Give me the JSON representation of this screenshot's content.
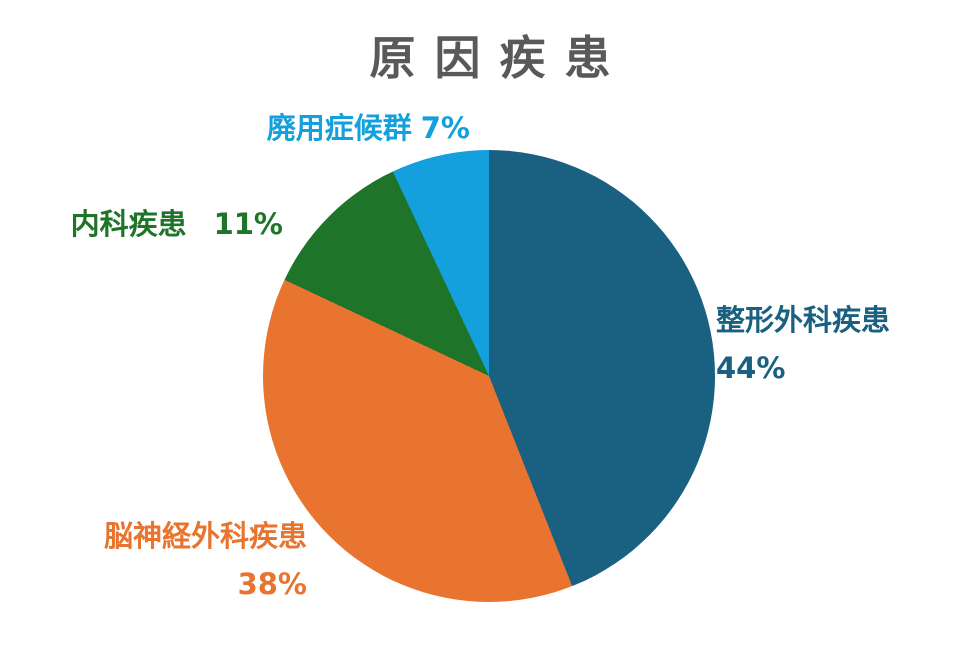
{
  "title": {
    "text": "原因疾患",
    "color": "#595959"
  },
  "chart_data": {
    "type": "pie",
    "title": "原因疾患",
    "start_angle": "12 o'clock",
    "direction": "clockwise",
    "legend": "none",
    "labels_position": "outside, colored same as slice",
    "background_color": "#ffffff",
    "slices": [
      {
        "label": "整形外科疾患",
        "value_pct": 44,
        "pct_label": "44%",
        "color": "#1A6080"
      },
      {
        "label": "脳神経外科疾患",
        "value_pct": 38,
        "pct_label": "38%",
        "color": "#E8742F"
      },
      {
        "label": "内科疾患",
        "value_pct": 11,
        "pct_label": "11%",
        "color": "#1E7428"
      },
      {
        "label": "廃用症候群",
        "value_pct": 7,
        "pct_label": "7%",
        "color": "#14A0DC"
      }
    ]
  }
}
